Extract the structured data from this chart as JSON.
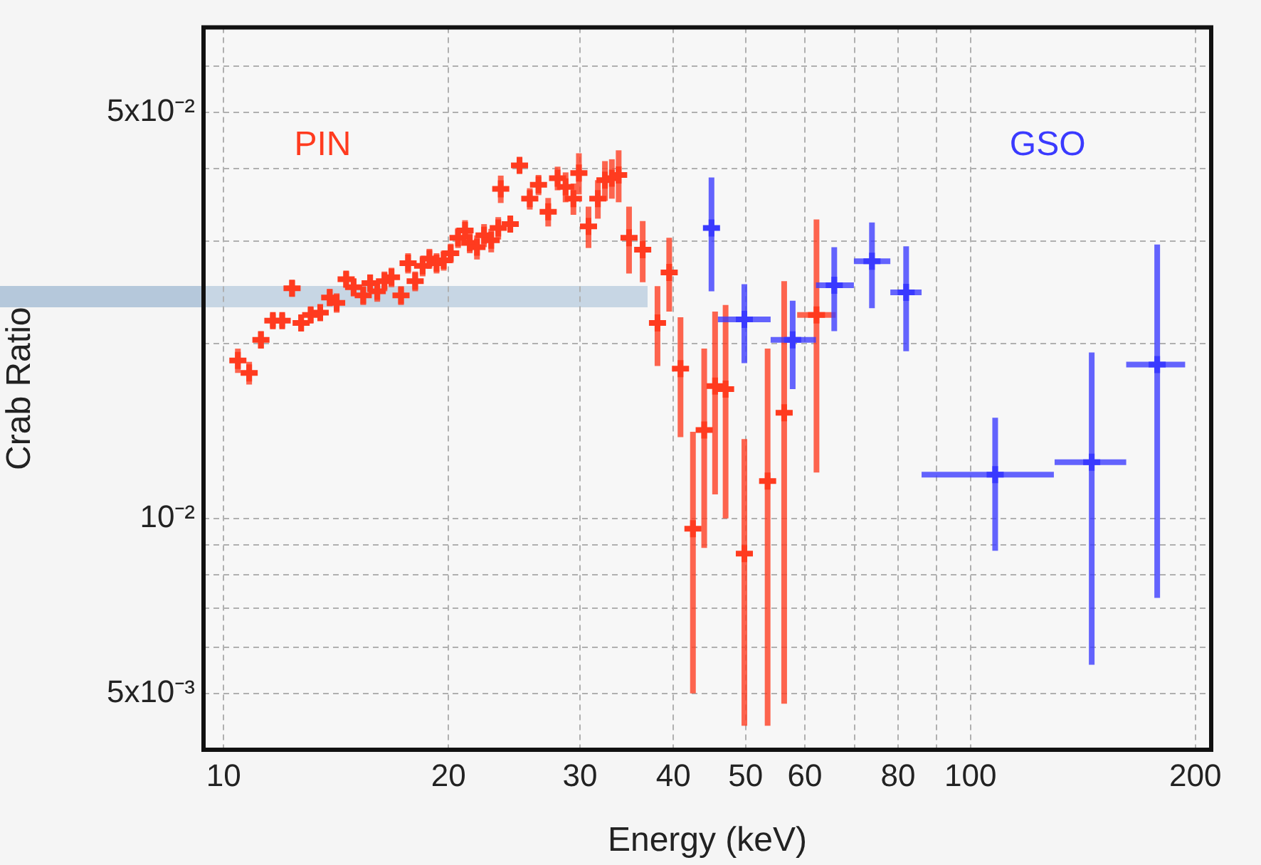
{
  "chart_data": {
    "type": "scatter",
    "xlabel": "Energy (keV)",
    "ylabel": "Crab Ratio",
    "log": "xy",
    "grid": true,
    "legend": false,
    "marker": "cross",
    "xlim": [
      9.4,
      210
    ],
    "ylim": [
      0.004,
      0.07
    ],
    "xticks": [
      10,
      20,
      30,
      40,
      50,
      60,
      {
        "value": 70,
        "label": null
      },
      80,
      {
        "value": 90,
        "label": null
      },
      100,
      200
    ],
    "yticks": [
      {
        "value": 0.004,
        "label": null
      },
      {
        "value": 0.005,
        "label": "5x10⁻³"
      },
      {
        "value": 0.006,
        "label": null
      },
      {
        "value": 0.007,
        "label": null
      },
      {
        "value": 0.008,
        "label": null
      },
      {
        "value": 0.009,
        "label": null
      },
      {
        "value": 0.01,
        "label": "10⁻²"
      },
      {
        "value": 0.02,
        "label": null
      },
      {
        "value": 0.03,
        "label": null
      },
      {
        "value": 0.04,
        "label": null
      },
      {
        "value": 0.05,
        "label": "5x10⁻²"
      },
      {
        "value": 0.06,
        "label": null
      }
    ],
    "series": [
      {
        "name": "PIN",
        "color": "#ff3b1f",
        "x": [
          10.45,
          10.82,
          11.22,
          11.64,
          11.98,
          12.35,
          12.7,
          13.08,
          13.47,
          13.87,
          14.17,
          14.59,
          14.93,
          15.38,
          15.71,
          16.06,
          16.42,
          16.78,
          17.28,
          17.66,
          18.05,
          18.47,
          18.86,
          19.28,
          19.71,
          20.14,
          20.6,
          21.05,
          21.36,
          21.84,
          22.32,
          22.82,
          23.32,
          23.5,
          24.2,
          24.9,
          25.7,
          26.4,
          27.2,
          28.0,
          28.7,
          29.4,
          29.9,
          30.8,
          31.7,
          32.4,
          33.1,
          33.8,
          34.9,
          36.4,
          38.1,
          39.5,
          40.9,
          42.5,
          44.0,
          45.5,
          47.0,
          49.8,
          53.5,
          56.3,
          62.2
        ],
        "values": [
          0.0187,
          0.0178,
          0.0203,
          0.0219,
          0.0219,
          0.0249,
          0.0217,
          0.0224,
          0.0226,
          0.024,
          0.0235,
          0.0258,
          0.025,
          0.0242,
          0.0254,
          0.0246,
          0.0256,
          0.026,
          0.0242,
          0.0275,
          0.0256,
          0.0272,
          0.028,
          0.0275,
          0.0278,
          0.0286,
          0.0304,
          0.0313,
          0.0298,
          0.0293,
          0.0307,
          0.0301,
          0.0316,
          0.0369,
          0.0321,
          0.0405,
          0.0355,
          0.0375,
          0.0337,
          0.0385,
          0.0372,
          0.0355,
          0.0393,
          0.0318,
          0.0355,
          0.0382,
          0.0385,
          0.039,
          0.0304,
          0.029,
          0.0217,
          0.0265,
          0.0181,
          0.0096,
          0.0142,
          0.0169,
          0.0167,
          0.0087,
          0.0116,
          0.0152,
          0.0224
        ],
        "errors": [
          0.0009,
          0.0008,
          0.0007,
          0.0006,
          0.0006,
          0.0008,
          0.0007,
          0.0007,
          0.0007,
          0.0008,
          0.0009,
          0.0008,
          0.0009,
          0.0009,
          0.0009,
          0.001,
          0.001,
          0.001,
          0.0009,
          0.0011,
          0.001,
          0.0011,
          0.0011,
          0.0011,
          0.0011,
          0.0011,
          0.0012,
          0.0013,
          0.0012,
          0.0014,
          0.0014,
          0.0014,
          0.0014,
          0.002,
          0.001,
          0.0012,
          0.0015,
          0.0015,
          0.0019,
          0.0018,
          0.0022,
          0.0022,
          0.0032,
          0.0026,
          0.0027,
          0.003,
          0.003,
          0.004,
          0.004,
          0.0035,
          0.0034,
          [
            0.0227,
            0.0304
          ],
          [
            0.0138,
            0.0222
          ],
          [
            0.005,
            0.0141
          ],
          [
            0.0089,
            0.0196
          ],
          [
            0.011,
            0.0227
          ],
          [
            0.01,
            0.0233
          ],
          [
            0.0044,
            0.0137
          ],
          [
            0.0044,
            0.0196
          ],
          0.0104,
          [
            0.012,
            0.0327
          ]
        ],
        "xerrors": [
          null,
          null,
          null,
          null,
          null,
          null,
          null,
          null,
          null,
          null,
          null,
          null,
          null,
          null,
          null,
          null,
          null,
          null,
          null,
          null,
          null,
          null,
          null,
          null,
          null,
          null,
          null,
          null,
          null,
          null,
          null,
          null,
          null,
          null,
          null,
          null,
          null,
          null,
          null,
          null,
          null,
          null,
          null,
          null,
          null,
          null,
          null,
          null,
          null,
          null,
          null,
          null,
          null,
          null,
          null,
          null,
          null,
          null,
          null,
          null,
          [
            58.6,
            66.0
          ]
        ]
      },
      {
        "name": "GSO",
        "color": "#3a3aff",
        "x": [
          45.0,
          49.8,
          57.8,
          65.7,
          73.8,
          82.0,
          107.9,
          145.3,
          177.8
        ],
        "values": [
          0.0316,
          0.022,
          0.0203,
          0.0252,
          0.0277,
          0.0245,
          0.0119,
          0.0125,
          0.0184
        ],
        "errors": [
          0.007,
          [
            0.0185,
            0.0253
          ],
          [
            0.0167,
            0.0237
          ],
          [
            0.021,
            0.0293
          ],
          [
            0.023,
            0.0323
          ],
          [
            0.0194,
            0.0294
          ],
          [
            0.0088,
            0.0149
          ],
          [
            0.0056,
            0.0193
          ],
          [
            0.0073,
            0.0296
          ]
        ],
        "xerrors": [
          null,
          [
            45.9,
            54.0
          ],
          [
            54.0,
            62.1
          ],
          [
            62.1,
            69.8
          ],
          [
            69.8,
            78.1
          ],
          [
            78.1,
            86.0
          ],
          [
            86.0,
            129.3
          ],
          [
            129.6,
            161.6
          ],
          [
            161.6,
            193.8
          ]
        ]
      }
    ]
  }
}
